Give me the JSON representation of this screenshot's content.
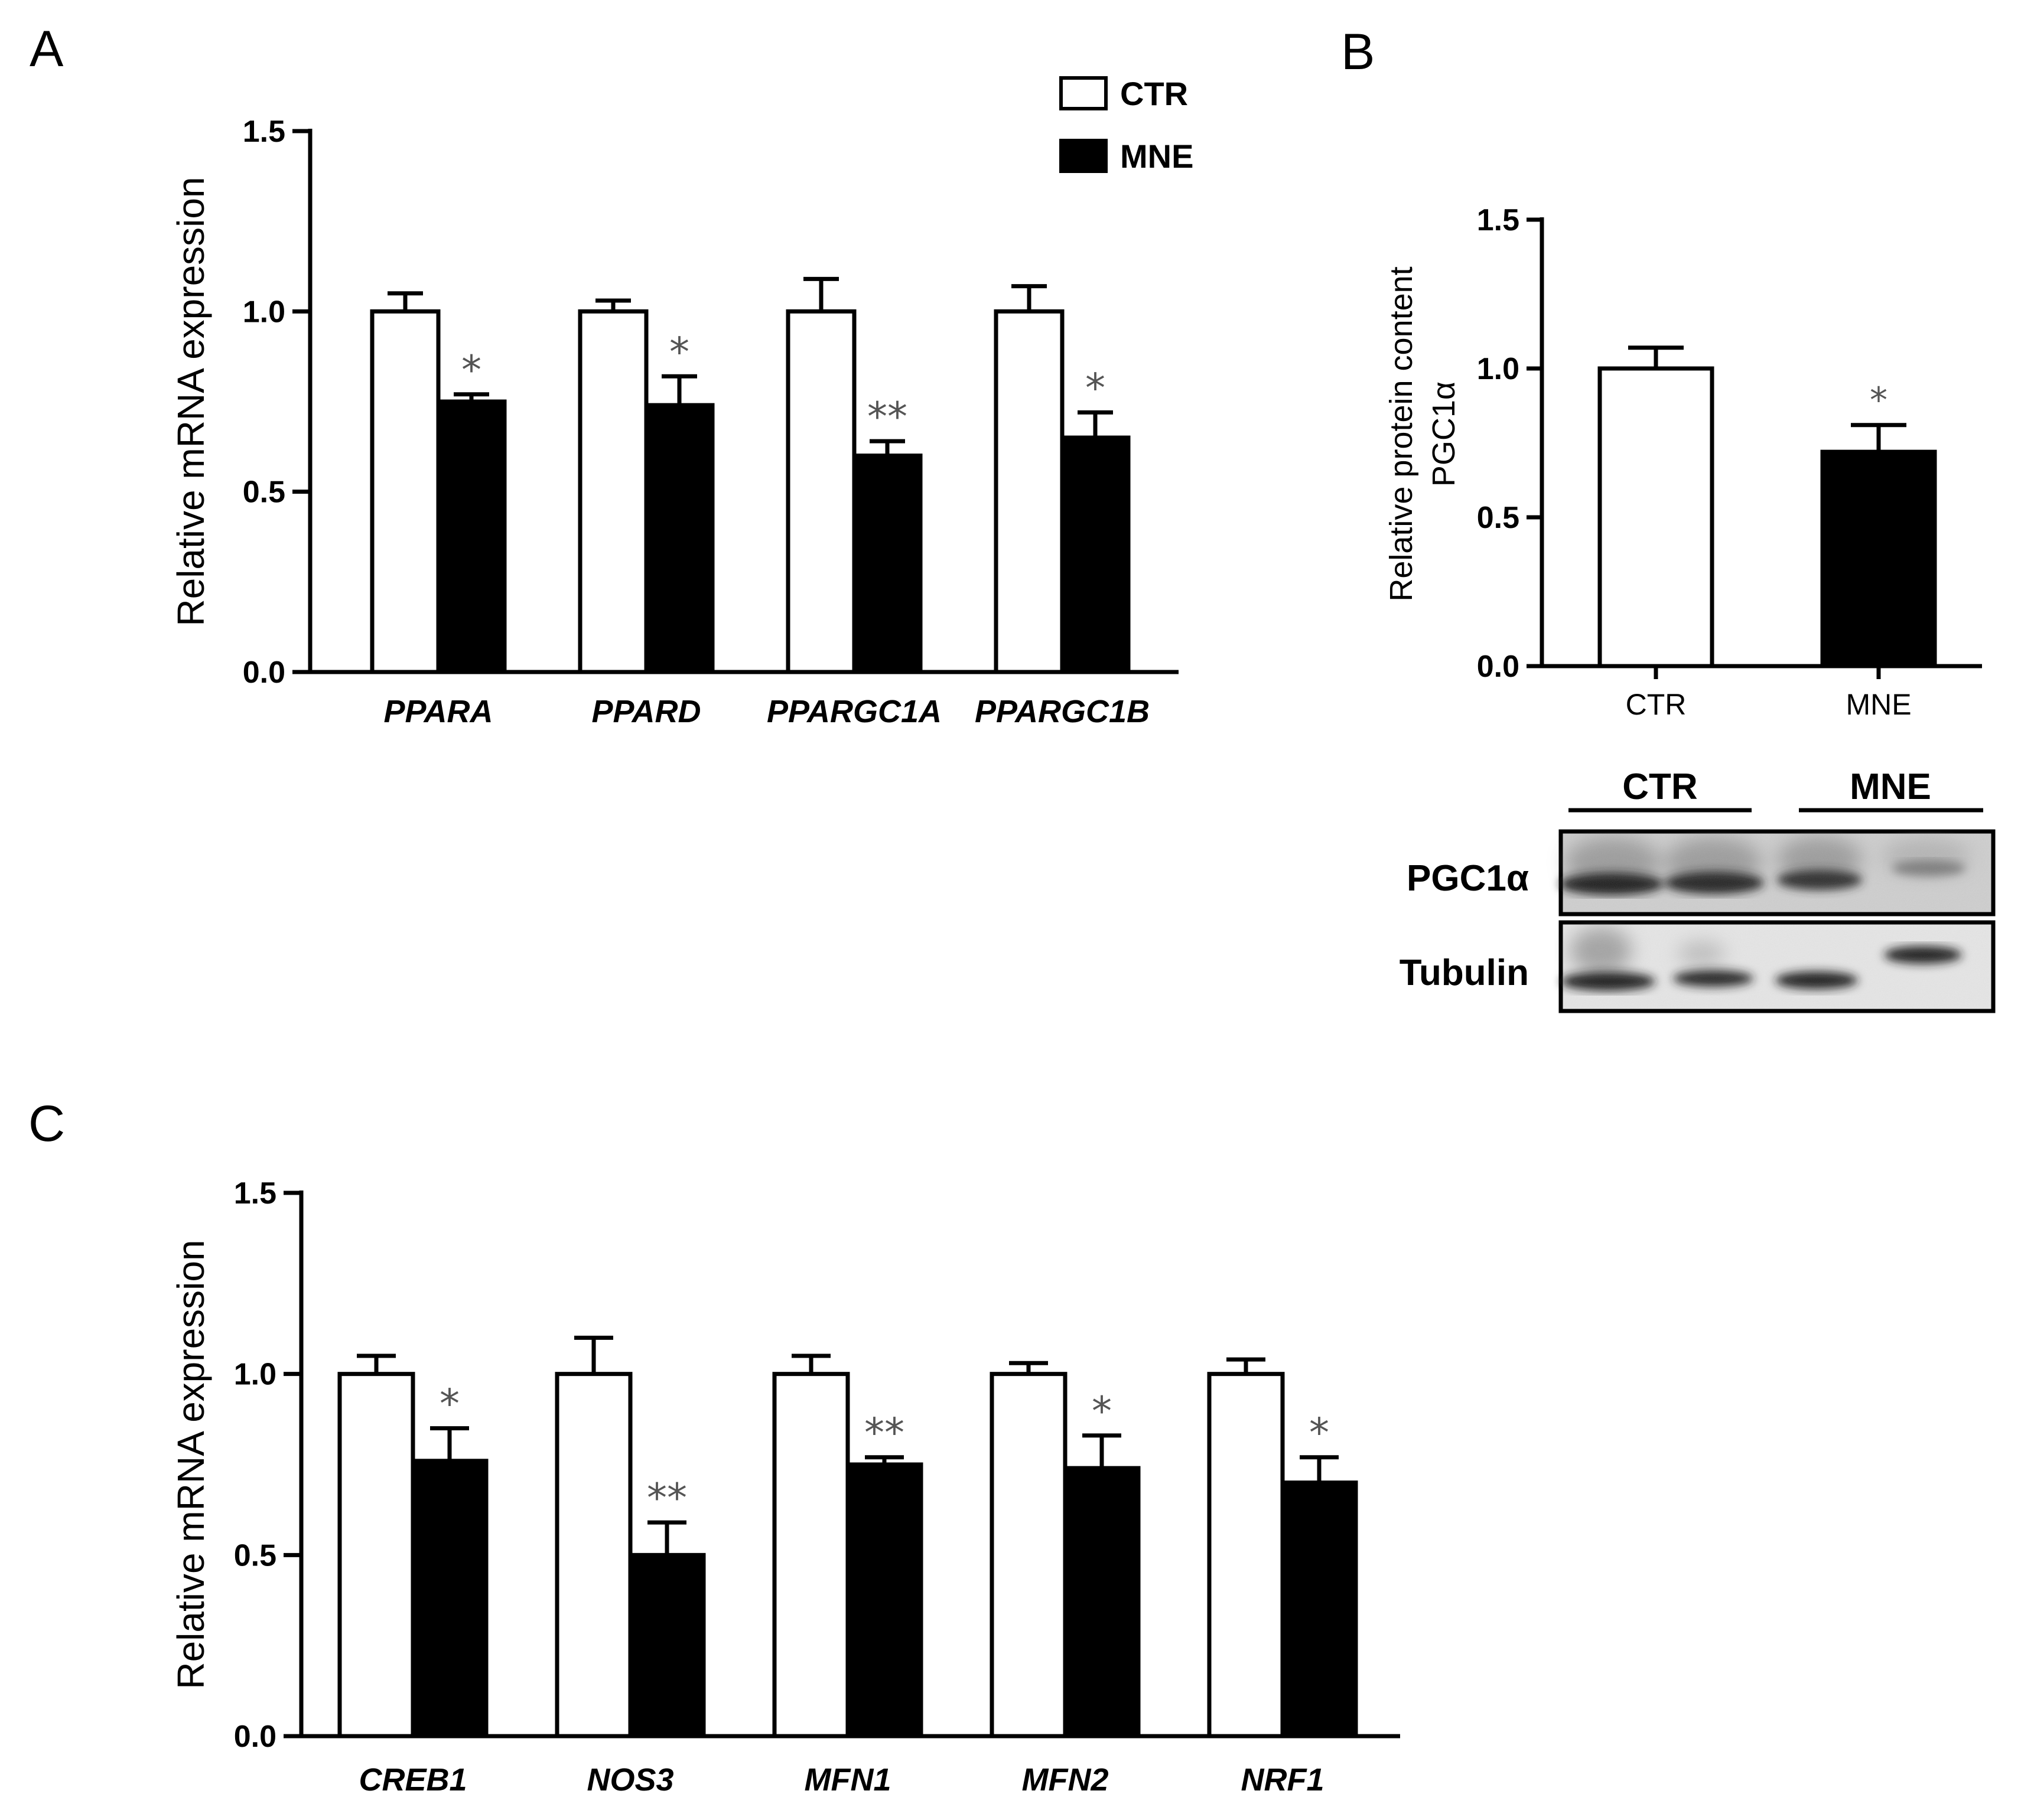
{
  "panels": {
    "A": "A",
    "B": "B",
    "C": "C"
  },
  "legend": {
    "ctr": "CTR",
    "mne": "MNE"
  },
  "colors": {
    "ctr_fill": "#ffffff",
    "mne_fill": "#000000",
    "significance": "#555555"
  },
  "blot": {
    "group_ctr": "CTR",
    "group_mne": "MNE",
    "row1_label": "PGC1α",
    "row2_label": "Tubulin"
  },
  "chart_data": [
    {
      "id": "A",
      "type": "bar",
      "ylabel": "Relative mRNA expression",
      "ylim": [
        0,
        1.5
      ],
      "yticks": [
        "0.0",
        "0.5",
        "1.0",
        "1.5"
      ],
      "categories": [
        "PPARA",
        "PPARD",
        "PPARGC1A",
        "PPARGC1B"
      ],
      "series": [
        {
          "name": "CTR",
          "values": [
            1.0,
            1.0,
            1.0,
            1.0
          ],
          "errors": [
            0.05,
            0.03,
            0.09,
            0.07
          ]
        },
        {
          "name": "MNE",
          "values": [
            0.75,
            0.74,
            0.6,
            0.65
          ],
          "errors": [
            0.02,
            0.08,
            0.04,
            0.07
          ]
        }
      ],
      "significance": [
        "*",
        "*",
        "**",
        "*"
      ]
    },
    {
      "id": "B",
      "type": "bar",
      "ylabel_line1": "Relative protein content",
      "ylabel_line2": "PGC1α",
      "ylim": [
        0,
        1.5
      ],
      "yticks": [
        "0.0",
        "0.5",
        "1.0",
        "1.5"
      ],
      "categories": [
        "CTR",
        "MNE"
      ],
      "values": [
        1.0,
        0.72
      ],
      "errors": [
        0.07,
        0.09
      ],
      "significance": [
        "",
        "*"
      ]
    },
    {
      "id": "C",
      "type": "bar",
      "ylabel": "Relative mRNA expression",
      "ylim": [
        0,
        1.5
      ],
      "yticks": [
        "0.0",
        "0.5",
        "1.0",
        "1.5"
      ],
      "categories": [
        "CREB1",
        "NOS3",
        "MFN1",
        "MFN2",
        "NRF1"
      ],
      "series": [
        {
          "name": "CTR",
          "values": [
            1.0,
            1.0,
            1.0,
            1.0,
            1.0
          ],
          "errors": [
            0.05,
            0.1,
            0.05,
            0.03,
            0.04
          ]
        },
        {
          "name": "MNE",
          "values": [
            0.76,
            0.5,
            0.75,
            0.74,
            0.7
          ],
          "errors": [
            0.09,
            0.09,
            0.02,
            0.09,
            0.07
          ]
        }
      ],
      "significance": [
        "*",
        "**",
        "**",
        "*",
        "*"
      ]
    }
  ]
}
